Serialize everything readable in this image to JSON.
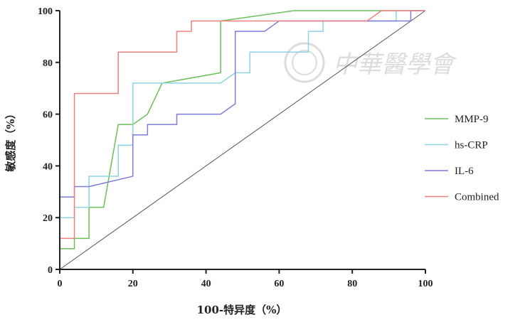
{
  "chart_data": {
    "type": "line",
    "xlabel": "100-特异度（%）",
    "ylabel": "敏感度（%）",
    "xlim": [
      0,
      100
    ],
    "ylim": [
      0,
      100
    ],
    "xticks": [
      "0",
      "20",
      "40",
      "60",
      "80",
      "100"
    ],
    "yticks": [
      "0",
      "20",
      "40",
      "60",
      "80",
      "100"
    ],
    "grid": false,
    "legend_position": "right",
    "reference_line": {
      "x": [
        0,
        100
      ],
      "y": [
        0,
        100
      ],
      "color": "#555555"
    },
    "series": [
      {
        "name": "MMP-9",
        "color": "#6cbf5a",
        "x": [
          0,
          4,
          4,
          8,
          8,
          12,
          16,
          20,
          24,
          28,
          44,
          44,
          64,
          100
        ],
        "y": [
          8,
          8,
          12,
          12,
          24,
          24,
          56,
          56,
          60,
          72,
          76,
          96,
          100,
          100
        ]
      },
      {
        "name": "hs-CRP",
        "color": "#8fd3e0",
        "x": [
          0,
          0,
          4,
          4,
          8,
          8,
          16,
          16,
          20,
          20,
          44,
          48,
          52,
          52,
          60,
          68,
          68,
          72,
          72,
          92,
          92,
          100
        ],
        "y": [
          0,
          20,
          20,
          24,
          24,
          36,
          36,
          48,
          48,
          72,
          72,
          76,
          76,
          84,
          84,
          84,
          92,
          92,
          96,
          96,
          100,
          100
        ]
      },
      {
        "name": "IL-6",
        "color": "#7d7dd8",
        "x": [
          0,
          0,
          4,
          4,
          8,
          20,
          20,
          24,
          24,
          32,
          32,
          44,
          48,
          48,
          56,
          60,
          96,
          96,
          100
        ],
        "y": [
          0,
          28,
          28,
          32,
          32,
          36,
          52,
          52,
          56,
          56,
          60,
          60,
          64,
          92,
          92,
          96,
          96,
          100,
          100
        ]
      },
      {
        "name": "Combined",
        "color": "#f08080",
        "x": [
          0,
          0,
          4,
          4,
          16,
          16,
          32,
          32,
          36,
          36,
          84,
          88,
          100
        ],
        "y": [
          0,
          12,
          12,
          68,
          68,
          84,
          84,
          92,
          92,
          96,
          96,
          100,
          100
        ]
      }
    ]
  },
  "watermark": {
    "text": "中華醫學會",
    "color": "#d9d9d9"
  }
}
